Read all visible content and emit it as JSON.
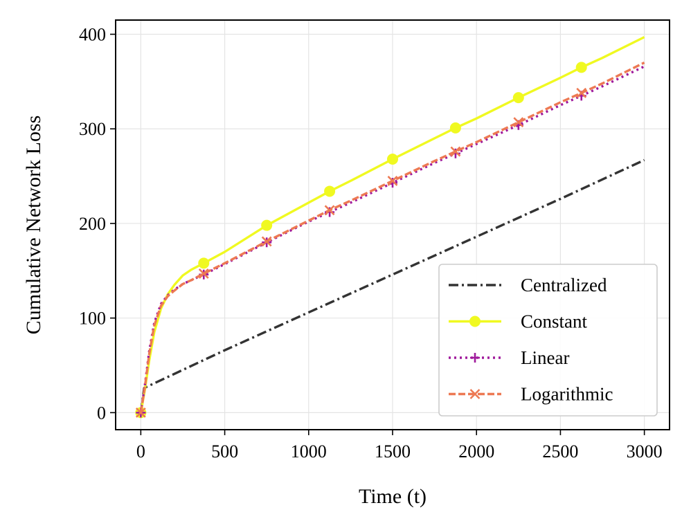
{
  "chart_data": {
    "type": "line",
    "title": "",
    "xlabel": "Time (t)",
    "ylabel": "Cumulative Network Loss",
    "xlim": [
      -150,
      3150
    ],
    "ylim": [
      -18,
      415
    ],
    "xticks": [
      0,
      500,
      1000,
      1500,
      2000,
      2500,
      3000
    ],
    "yticks": [
      0,
      100,
      200,
      300,
      400
    ],
    "grid": true,
    "legend_position": "lower-right",
    "series": [
      {
        "name": "Centralized",
        "color": "#333333",
        "style": "dashdot",
        "marker": "none",
        "x": [
          0,
          20,
          500,
          1000,
          1500,
          2000,
          2500,
          3000
        ],
        "y": [
          0,
          26,
          66,
          106,
          146,
          186,
          226,
          267
        ]
      },
      {
        "name": "Constant",
        "color": "#f0f921",
        "style": "solid",
        "marker": "circle",
        "x": [
          0,
          25,
          50,
          80,
          120,
          160,
          200,
          250,
          300,
          375,
          500,
          750,
          1000,
          1125,
          1250,
          1500,
          1750,
          1875,
          2000,
          2250,
          2500,
          2625,
          2750,
          3000
        ],
        "y": [
          0,
          25,
          55,
          85,
          110,
          125,
          135,
          145,
          151,
          158,
          170,
          198,
          222,
          234,
          245,
          268,
          290,
          301,
          311,
          333,
          354,
          365,
          375,
          397
        ],
        "marker_x": [
          0,
          375,
          750,
          1125,
          1500,
          1875,
          2250,
          2625
        ]
      },
      {
        "name": "Linear",
        "color": "#a01a9c",
        "style": "dotted",
        "marker": "plus",
        "x": [
          0,
          25,
          50,
          80,
          120,
          160,
          200,
          250,
          300,
          375,
          500,
          750,
          1000,
          1125,
          1250,
          1500,
          1750,
          1875,
          2000,
          2250,
          2500,
          2625,
          2750,
          3000
        ],
        "y": [
          0,
          30,
          65,
          95,
          115,
          124,
          130,
          136,
          140,
          146,
          157,
          180,
          202,
          212,
          222,
          243,
          264,
          274,
          284,
          304,
          325,
          335,
          345,
          366
        ],
        "marker_x": [
          0,
          375,
          750,
          1125,
          1500,
          1875,
          2250,
          2625
        ]
      },
      {
        "name": "Logarithmic",
        "color": "#ed7953",
        "style": "dashed",
        "marker": "x",
        "x": [
          0,
          25,
          50,
          80,
          120,
          160,
          200,
          250,
          300,
          375,
          500,
          750,
          1000,
          1125,
          1250,
          1500,
          1750,
          1875,
          2000,
          2250,
          2500,
          2625,
          2750,
          3000
        ],
        "y": [
          0,
          28,
          62,
          92,
          113,
          123,
          129,
          136,
          140,
          147,
          158,
          181,
          203,
          214,
          224,
          245,
          266,
          276,
          286,
          307,
          328,
          338,
          348,
          370
        ],
        "marker_x": [
          0,
          375,
          750,
          1125,
          1500,
          1875,
          2250,
          2625
        ]
      }
    ]
  }
}
